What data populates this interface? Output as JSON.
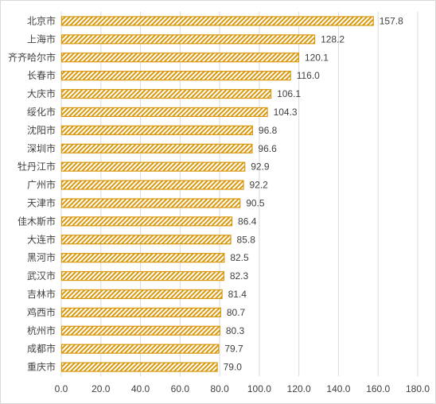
{
  "chart_data": {
    "type": "bar",
    "orientation": "horizontal",
    "title": "",
    "xlabel": "",
    "ylabel": "",
    "xlim": [
      0,
      180
    ],
    "x_ticks": [
      "0.0",
      "20.0",
      "40.0",
      "60.0",
      "80.0",
      "100.0",
      "120.0",
      "140.0",
      "160.0",
      "180.0"
    ],
    "grid": true,
    "legend": "none",
    "bar_color": "#D9980D",
    "bar_pattern": "diagonal-hatch",
    "categories": [
      "北京市",
      "上海市",
      "齐齐哈尔市",
      "长春市",
      "大庆市",
      "绥化市",
      "沈阳市",
      "深圳市",
      "牡丹江市",
      "广州市",
      "天津市",
      "佳木斯市",
      "大连市",
      "黑河市",
      "武汉市",
      "吉林市",
      "鸡西市",
      "杭州市",
      "成都市",
      "重庆市"
    ],
    "values": [
      157.8,
      128.2,
      120.1,
      116.0,
      106.1,
      104.3,
      96.8,
      96.6,
      92.9,
      92.2,
      90.5,
      86.4,
      85.8,
      82.5,
      82.3,
      81.4,
      80.7,
      80.3,
      79.7,
      79.0
    ],
    "value_labels": [
      "157.8",
      "128.2",
      "120.1",
      "116.0",
      "106.1",
      "104.3",
      "96.8",
      "96.6",
      "92.9",
      "92.2",
      "90.5",
      "86.4",
      "85.8",
      "82.5",
      "82.3",
      "81.4",
      "80.7",
      "80.3",
      "79.7",
      "79.0"
    ]
  }
}
